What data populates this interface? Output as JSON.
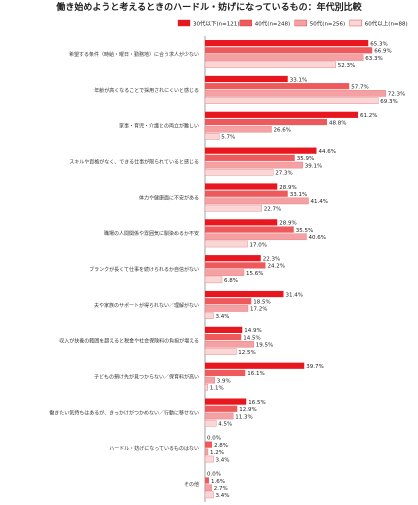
{
  "chart_data": {
    "type": "bar",
    "orientation": "horizontal",
    "title": "働き始めようと考えるときのハードル・妨げになっているもの：年代別比較",
    "legend_position": "top-right",
    "grid": false,
    "xlim": [
      0,
      75
    ],
    "categories": [
      "希望する条件（時給・曜日・勤務地）に合う求人が少ない",
      "年齢が高くなることで採用されにくいと感じる",
      "家事・育児・介護との両立が難しい",
      "スキルや資格がなく、できる仕事が限られていると感じる",
      "体力や健康面に不安がある",
      "職場の人間関係や雰囲気に馴染めるか不安",
      "ブランクが長くて仕事を続けられるか自信がない",
      "夫や家族のサポートが得られない／理解がない",
      "収入が扶養の範囲を超えると税金や社会保険料の負担が増える",
      "子どもの預け先が見つからない／保育料が高い",
      "働きたい気持ちはあるが、きっかけがつかめない／行動に移せない",
      "ハードル・妨げになっているものはない",
      "その他"
    ],
    "series": [
      {
        "name": "30代以下(n=121)",
        "color": "#e8161e",
        "values": [
          65.3,
          33.1,
          61.2,
          44.6,
          28.9,
          28.9,
          22.3,
          31.4,
          14.9,
          39.7,
          16.5,
          0.0,
          0.0
        ]
      },
      {
        "name": "40代(n=248)",
        "color": "#ee5a5c",
        "values": [
          66.9,
          57.7,
          48.8,
          35.9,
          33.1,
          35.5,
          24.2,
          18.5,
          14.5,
          16.1,
          12.9,
          2.8,
          1.6
        ]
      },
      {
        "name": "50代(n=256)",
        "color": "#f5a0a3",
        "values": [
          63.3,
          72.3,
          26.6,
          39.1,
          41.4,
          40.6,
          15.6,
          17.2,
          19.5,
          3.9,
          11.3,
          1.2,
          2.7
        ]
      },
      {
        "name": "60代以上(n=88)",
        "color": "#fbd6d7",
        "values": [
          52.3,
          69.3,
          5.7,
          27.3,
          22.7,
          17.0,
          6.8,
          3.4,
          12.5,
          1.1,
          4.5,
          3.4,
          3.4
        ]
      }
    ]
  }
}
